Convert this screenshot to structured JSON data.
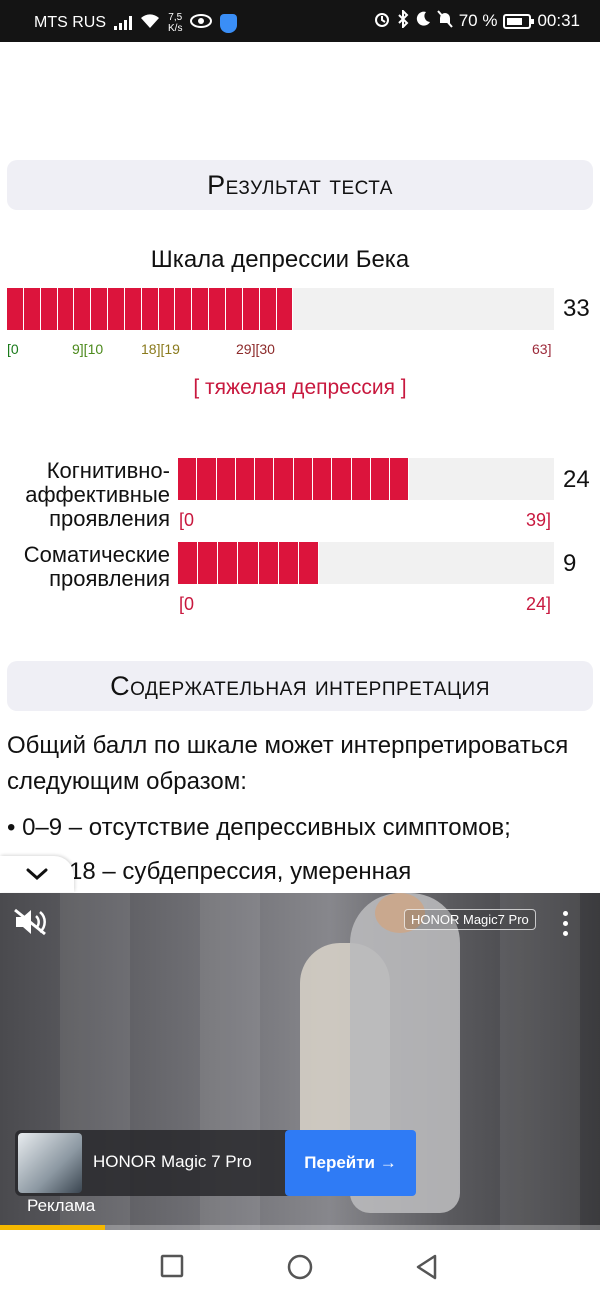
{
  "status_bar": {
    "carrier": "MTS RUS",
    "net_speed_value": "7,5",
    "net_speed_unit": "K/s",
    "battery": "70 %",
    "time": "00:31"
  },
  "result_section": {
    "title": "Результат теста",
    "main_scale": {
      "title": "Шкала депрессии Бека",
      "score": "33",
      "score_value": 33,
      "max_value": 63,
      "ticks": [
        {
          "text": "[0",
          "color": "#1a7a1a"
        },
        {
          "text": "9][10",
          "color": "#4c8a1c"
        },
        {
          "text": "18][19",
          "color": "#8a7a1c"
        },
        {
          "text": "29][30",
          "color": "#8c2a2a"
        },
        {
          "text": "63]",
          "color": "#9c2a3a"
        }
      ],
      "interpretation": "[ тяжелая депрессия ]"
    },
    "subscales": [
      {
        "label_lines": [
          "Когнитивно-",
          "аффективные",
          "проявления"
        ],
        "score": "24",
        "score_value": 24,
        "max_value": 39,
        "range_min": "[0",
        "range_max": "39]"
      },
      {
        "label_lines": [
          "Соматические",
          "проявления"
        ],
        "score": "9",
        "score_value": 9,
        "max_value": 24,
        "range_min": "[0",
        "range_max": "24]"
      }
    ]
  },
  "interpretation_section": {
    "title": "Содержательная интерпретация",
    "intro": "Общий балл по шкале может интерпретироваться следующим образом:",
    "bullet_1": "• 0–9 – отсутствие депрессивных симптомов;",
    "bullet_2_partial": "18 – субдепрессия, умеренная"
  },
  "ad": {
    "brand_tag": "HONOR Magic7 Pro",
    "product": "HONOR Magic 7 Pro",
    "cta": "Перейти →",
    "label": "Реклама",
    "progress": 0.175
  },
  "colors": {
    "bar_fill": "#dc143c",
    "accent_text": "#c8183e"
  }
}
